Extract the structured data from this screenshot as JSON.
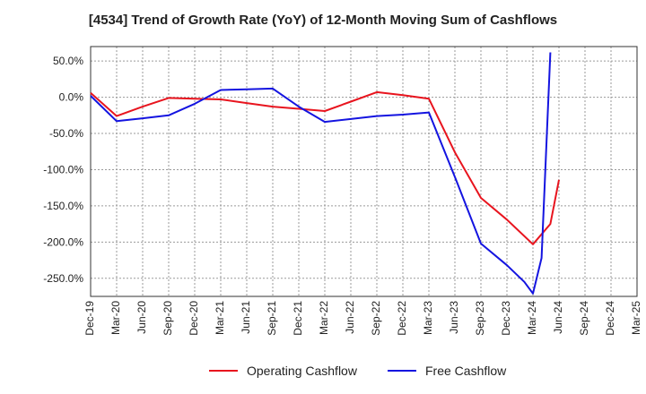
{
  "chart_data": {
    "type": "line",
    "title": "[4534]  Trend of Growth Rate (YoY) of 12-Month Moving Sum of Cashflows",
    "xlabel": "",
    "ylabel": "",
    "x": [
      "Dec-19",
      "Mar-20",
      "Jun-20",
      "Sep-20",
      "Dec-20",
      "Mar-21",
      "Jun-21",
      "Sep-21",
      "Dec-21",
      "Mar-22",
      "Jun-22",
      "Sep-22",
      "Dec-22",
      "Mar-23",
      "Jun-23",
      "Sep-23",
      "Dec-23",
      "Mar-24",
      "Jun-24",
      "Sep-24",
      "Dec-24",
      "Mar-25"
    ],
    "ylim": [
      -275,
      70
    ],
    "yticks": [
      50,
      0,
      -50,
      -100,
      -150,
      -200,
      -250
    ],
    "ytick_labels": [
      "50.0%",
      "0.0%",
      "-50.0%",
      "-100.0%",
      "-150.0%",
      "-200.0%",
      "-250.0%"
    ],
    "grid": true,
    "legend_position": "bottom",
    "series": [
      {
        "name": "Operating Cashflow",
        "color": "#e8141e",
        "points": [
          [
            0,
            6
          ],
          [
            1,
            -26
          ],
          [
            2,
            -13
          ],
          [
            3,
            -1
          ],
          [
            4,
            -2
          ],
          [
            5,
            -3
          ],
          [
            6,
            -8
          ],
          [
            7,
            -13
          ],
          [
            8,
            -16
          ],
          [
            9,
            -19
          ],
          [
            10,
            -6
          ],
          [
            11,
            7
          ],
          [
            12,
            3
          ],
          [
            13,
            -2
          ],
          [
            14,
            -76
          ],
          [
            15,
            -139
          ],
          [
            16,
            -169
          ],
          [
            17,
            -203
          ],
          [
            17.67,
            -175
          ],
          [
            18,
            -114
          ]
        ]
      },
      {
        "name": "Free Cashflow",
        "color": "#1414e0",
        "points": [
          [
            0,
            2
          ],
          [
            1,
            -33
          ],
          [
            2,
            -29
          ],
          [
            3,
            -25
          ],
          [
            4,
            -9
          ],
          [
            5,
            10
          ],
          [
            6,
            11
          ],
          [
            7,
            12
          ],
          [
            8,
            -13
          ],
          [
            9,
            -34
          ],
          [
            10,
            -30
          ],
          [
            11,
            -26
          ],
          [
            12,
            -24
          ],
          [
            13,
            -21
          ],
          [
            14,
            -110
          ],
          [
            15,
            -202
          ],
          [
            16,
            -232
          ],
          [
            16.67,
            -255
          ],
          [
            17,
            -271
          ],
          [
            17.33,
            -222
          ],
          [
            17.67,
            62
          ]
        ]
      }
    ]
  }
}
